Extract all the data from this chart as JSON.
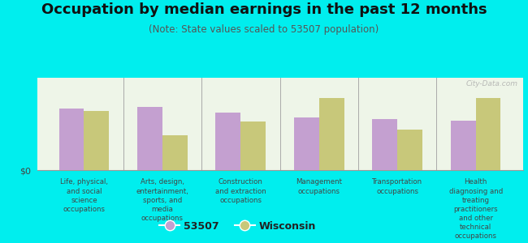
{
  "title": "Occupation by median earnings in the past 12 months",
  "subtitle": "(Note: State values scaled to 53507 population)",
  "background_color": "#00eeee",
  "chart_bg": "#eef5e8",
  "watermark": "City-Data.com",
  "categories": [
    "Life, physical,\nand social\nscience\noccupations",
    "Arts, design,\nentertainment,\nsports, and\nmedia\noccupations",
    "Construction\nand extraction\noccupations",
    "Management\noccupations",
    "Transportation\noccupations",
    "Health\ndiagnosing and\ntreating\npractitioners\nand other\ntechnical\noccupations"
  ],
  "values_53507": [
    0.7,
    0.72,
    0.65,
    0.6,
    0.58,
    0.56
  ],
  "values_wisconsin": [
    0.67,
    0.4,
    0.55,
    0.82,
    0.46,
    0.82
  ],
  "color_53507": "#c4a0d0",
  "color_wisconsin": "#c8c87a",
  "bar_width": 0.32,
  "ylim": [
    0,
    1.05
  ],
  "legend_53507": "53507",
  "legend_wisconsin": "Wisconsin",
  "title_fontsize": 13,
  "subtitle_fontsize": 8.5,
  "label_fontsize": 6.2,
  "legend_fontsize": 9
}
